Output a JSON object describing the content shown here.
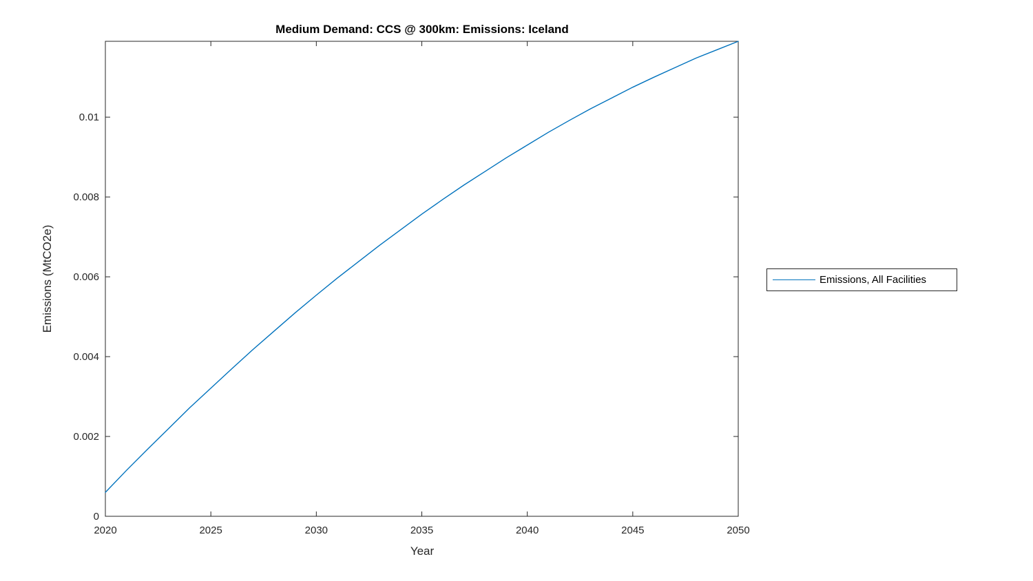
{
  "figure": {
    "background": "#ffffff"
  },
  "chart_data": {
    "type": "line",
    "title": "Medium Demand: CCS @ 300km: Emissions: Iceland",
    "xlabel": "Year",
    "ylabel": "Emissions (MtCO2e)",
    "xlim": [
      2020,
      2050
    ],
    "ylim": [
      0,
      0.0119
    ],
    "xticks": [
      2020,
      2025,
      2030,
      2035,
      2040,
      2045,
      2050
    ],
    "xtick_labels": [
      "2020",
      "2025",
      "2030",
      "2035",
      "2040",
      "2045",
      "2050"
    ],
    "yticks": [
      0,
      0.002,
      0.004,
      0.006,
      0.008,
      0.01
    ],
    "ytick_labels": [
      "0",
      "0.002",
      "0.004",
      "0.006",
      "0.008",
      "0.01"
    ],
    "grid": false,
    "legend_position": "right-outside",
    "series": [
      {
        "name": "Emissions, All Facilities",
        "color": "#0072BD",
        "x": [
          2020,
          2021,
          2022,
          2023,
          2024,
          2025,
          2026,
          2027,
          2028,
          2029,
          2030,
          2031,
          2032,
          2033,
          2034,
          2035,
          2036,
          2037,
          2038,
          2039,
          2040,
          2041,
          2042,
          2043,
          2044,
          2045,
          2046,
          2047,
          2048,
          2049,
          2050
        ],
        "y": [
          0.0006,
          0.00115,
          0.00168,
          0.0022,
          0.00272,
          0.00321,
          0.0037,
          0.00418,
          0.00464,
          0.0051,
          0.00554,
          0.00597,
          0.00638,
          0.00679,
          0.00718,
          0.00757,
          0.00794,
          0.0083,
          0.00864,
          0.00898,
          0.0093,
          0.00962,
          0.00992,
          0.01021,
          0.01048,
          0.01075,
          0.011,
          0.01124,
          0.01148,
          0.01169,
          0.0119
        ]
      }
    ]
  },
  "legend": {
    "entries": [
      {
        "label": "Emissions, All Facilities",
        "line_color": "#0072BD"
      }
    ]
  },
  "colors": {
    "line": "#0072BD",
    "axis": "#262626",
    "tick_label": "#262626",
    "title": "#000000",
    "background": "#ffffff"
  }
}
